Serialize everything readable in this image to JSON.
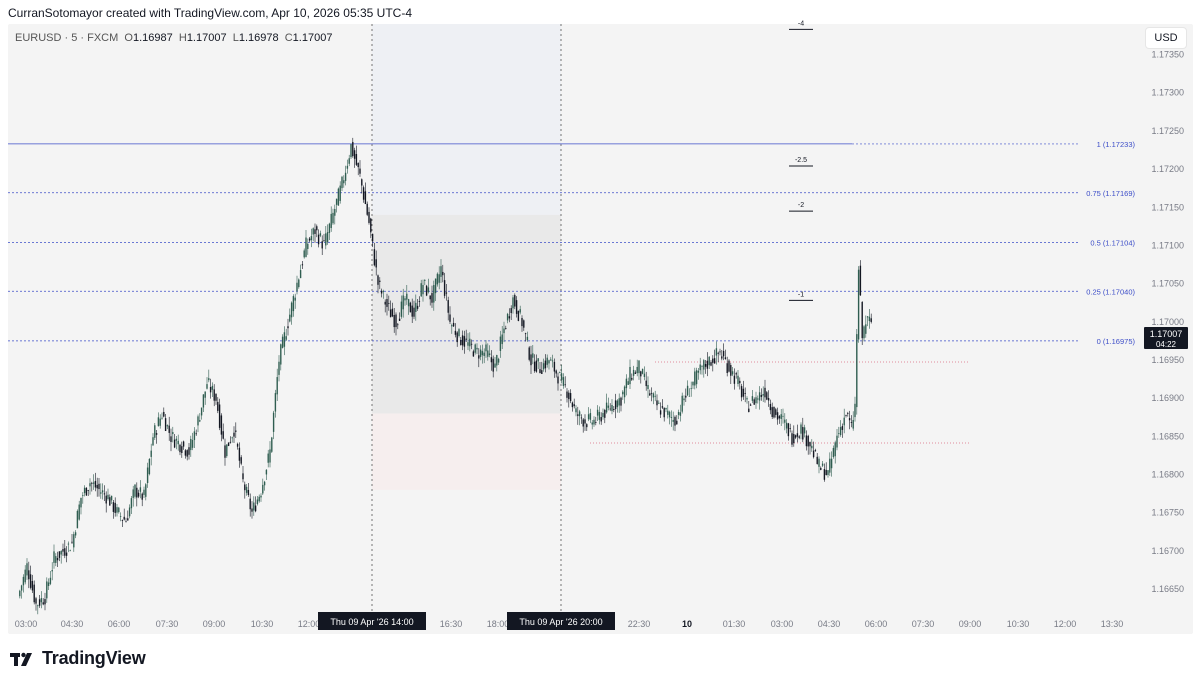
{
  "header": {
    "attribution": "CurranSotomayor created with TradingView.com, Apr 10, 2026 05:35 UTC-4"
  },
  "legend": {
    "symbol": "EURUSD · 5 · FXCM",
    "open_label": "O",
    "open": "1.16987",
    "high_label": "H",
    "high": "1.17007",
    "low_label": "L",
    "low": "1.16978",
    "close_label": "C",
    "close": "1.17007"
  },
  "currency_button": "USD",
  "footer": {
    "brand": "TradingView"
  },
  "colors": {
    "up": "#2f5d50",
    "down": "#131722",
    "fib": "#3d4ec8",
    "bg": "#f4f4f4"
  },
  "chart_data": {
    "type": "candlestick",
    "symbol": "EURUSD",
    "timeframe": "5",
    "ylim": [
      1.1662,
      1.1739
    ],
    "y_ticks": [
      "1.16650",
      "1.16700",
      "1.16750",
      "1.16800",
      "1.16850",
      "1.16900",
      "1.16950",
      "1.17000",
      "1.17050",
      "1.17100",
      "1.17150",
      "1.17200",
      "1.17250",
      "1.17300",
      "1.17350"
    ],
    "x_ticks": [
      "03:00",
      "04:30",
      "06:00",
      "07:30",
      "09:00",
      "10:30",
      "12:00",
      "16:30",
      "18:00",
      "22:30",
      "10",
      "01:30",
      "03:00",
      "04:30",
      "06:00",
      "07:30",
      "09:00",
      "10:30",
      "12:00",
      "13:30"
    ],
    "x_highlights": [
      "Thu 09 Apr '26   14:00",
      "Thu 09 Apr '26   20:00"
    ],
    "fib_levels": [
      {
        "label": "1 (1.17233)",
        "value": 1.17233
      },
      {
        "label": "0.75 (1.17169)",
        "value": 1.17169
      },
      {
        "label": "0.5 (1.17104)",
        "value": 1.17104
      },
      {
        "label": "0.25 (1.17040)",
        "value": 1.1704
      },
      {
        "label": "0 (1.16975)",
        "value": 1.16975
      }
    ],
    "extension_marks": [
      {
        "label": "-4",
        "value": 1.17383
      },
      {
        "label": "-2.5",
        "value": 1.17204
      },
      {
        "label": "-2",
        "value": 1.17145
      },
      {
        "label": "-1",
        "value": 1.17028
      }
    ],
    "current_price": "1.17007",
    "countdown": "04:22",
    "path": [
      [
        0,
        1.1664
      ],
      [
        5,
        1.1668
      ],
      [
        10,
        1.1663
      ],
      [
        15,
        1.1664
      ],
      [
        20,
        1.1669
      ],
      [
        25,
        1.167
      ],
      [
        30,
        1.1671
      ],
      [
        35,
        1.1677
      ],
      [
        40,
        1.1679
      ],
      [
        45,
        1.1678
      ],
      [
        50,
        1.1677
      ],
      [
        55,
        1.1675
      ],
      [
        60,
        1.1674
      ],
      [
        65,
        1.1678
      ],
      [
        70,
        1.1677
      ],
      [
        75,
        1.1685
      ],
      [
        80,
        1.1688
      ],
      [
        85,
        1.1685
      ],
      [
        90,
        1.1684
      ],
      [
        95,
        1.1683
      ],
      [
        100,
        1.1687
      ],
      [
        105,
        1.1692
      ],
      [
        110,
        1.169
      ],
      [
        115,
        1.1683
      ],
      [
        120,
        1.1686
      ],
      [
        125,
        1.1679
      ],
      [
        130,
        1.1675
      ],
      [
        135,
        1.1678
      ],
      [
        140,
        1.1683
      ],
      [
        145,
        1.1695
      ],
      [
        150,
        1.17
      ],
      [
        155,
        1.1705
      ],
      [
        160,
        1.171
      ],
      [
        165,
        1.1712
      ],
      [
        170,
        1.171
      ],
      [
        175,
        1.1714
      ],
      [
        180,
        1.1718
      ],
      [
        185,
        1.1723
      ],
      [
        190,
        1.1719
      ],
      [
        195,
        1.1713
      ],
      [
        200,
        1.1705
      ],
      [
        205,
        1.1702
      ],
      [
        210,
        1.17
      ],
      [
        215,
        1.1703
      ],
      [
        220,
        1.1701
      ],
      [
        225,
        1.1705
      ],
      [
        230,
        1.1703
      ],
      [
        235,
        1.1707
      ],
      [
        240,
        1.17
      ],
      [
        245,
        1.1698
      ],
      [
        250,
        1.1697
      ],
      [
        255,
        1.1696
      ],
      [
        260,
        1.1696
      ],
      [
        265,
        1.1694
      ],
      [
        270,
        1.1699
      ],
      [
        275,
        1.1703
      ],
      [
        280,
        1.17
      ],
      [
        285,
        1.1695
      ],
      [
        290,
        1.1694
      ],
      [
        295,
        1.1695
      ],
      [
        300,
        1.1693
      ],
      [
        305,
        1.1691
      ],
      [
        310,
        1.1688
      ],
      [
        315,
        1.1687
      ],
      [
        320,
        1.1687
      ],
      [
        325,
        1.1688
      ],
      [
        330,
        1.1689
      ],
      [
        335,
        1.169
      ],
      [
        340,
        1.1693
      ],
      [
        345,
        1.1694
      ],
      [
        350,
        1.1691
      ],
      [
        355,
        1.1689
      ],
      [
        360,
        1.1688
      ],
      [
        365,
        1.1687
      ],
      [
        370,
        1.169
      ],
      [
        375,
        1.1692
      ],
      [
        380,
        1.1694
      ],
      [
        385,
        1.1695
      ],
      [
        390,
        1.1696
      ],
      [
        395,
        1.1694
      ],
      [
        400,
        1.1692
      ],
      [
        405,
        1.1689
      ],
      [
        410,
        1.169
      ],
      [
        415,
        1.1691
      ],
      [
        420,
        1.1688
      ],
      [
        425,
        1.1687
      ],
      [
        430,
        1.1685
      ],
      [
        435,
        1.1686
      ],
      [
        440,
        1.1684
      ],
      [
        445,
        1.1681
      ],
      [
        450,
        1.168
      ],
      [
        455,
        1.1685
      ],
      [
        460,
        1.1688
      ],
      [
        463,
        1.1686
      ],
      [
        465,
        1.1689
      ],
      [
        467,
        1.1707
      ],
      [
        469,
        1.1698
      ],
      [
        471,
        1.17
      ],
      [
        474,
        1.17
      ]
    ]
  }
}
